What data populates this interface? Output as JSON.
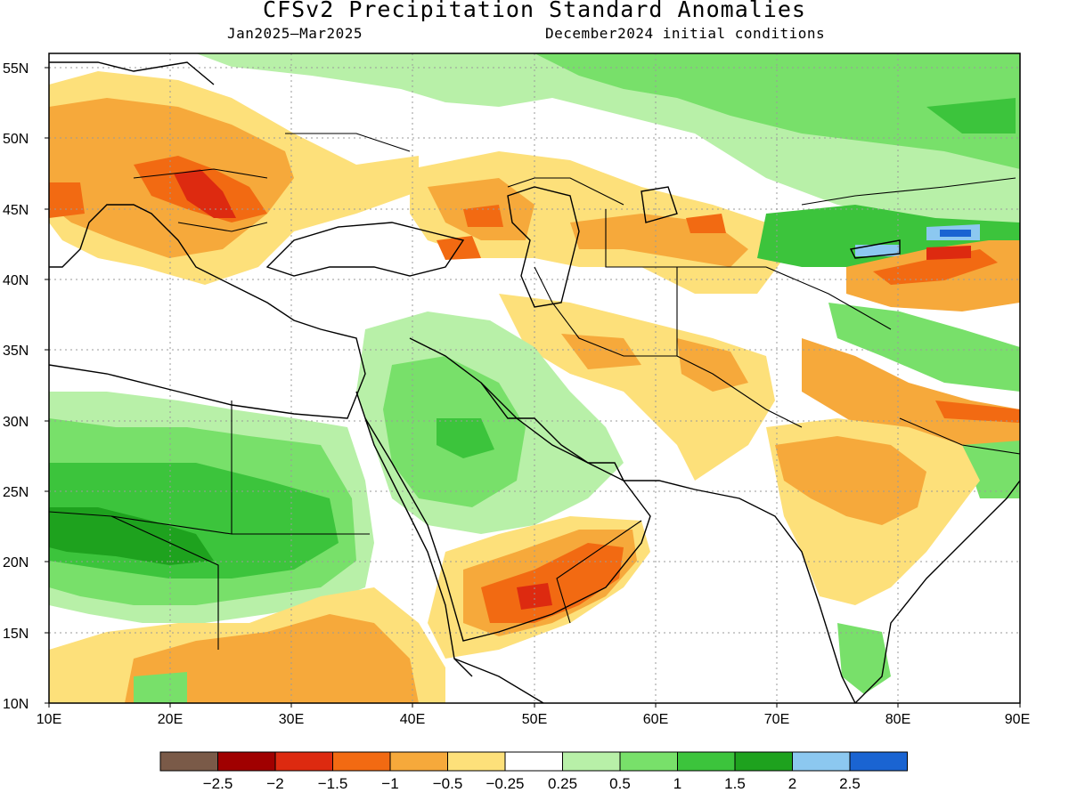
{
  "title": "CFSv2 Precipitation Standard Anomalies",
  "subtitle_left": "Jan2025–Mar2025",
  "subtitle_right": "December2024 initial conditions",
  "map": {
    "lon_range": [
      10,
      90
    ],
    "lat_range": [
      10,
      56
    ],
    "lat_labels": [
      "55N",
      "50N",
      "45N",
      "40N",
      "35N",
      "30N",
      "25N",
      "20N",
      "15N",
      "10N"
    ],
    "lon_labels": [
      "10E",
      "20E",
      "30E",
      "40E",
      "50E",
      "60E",
      "70E",
      "80E",
      "90E"
    ]
  },
  "colorbar": {
    "colors": [
      "#7a5a48",
      "#a00000",
      "#dd2a10",
      "#f26a12",
      "#f6a93b",
      "#fde07a",
      "#ffffff",
      "#b8f0a8",
      "#78e06a",
      "#3cc43c",
      "#1ea21e",
      "#8cc8f0",
      "#1a64d2"
    ],
    "labels": [
      "−2.5",
      "−2",
      "−1.5",
      "−1",
      "−0.5",
      "−0.25",
      "0.25",
      "0.5",
      "1",
      "1.5",
      "2",
      "2.5"
    ]
  }
}
